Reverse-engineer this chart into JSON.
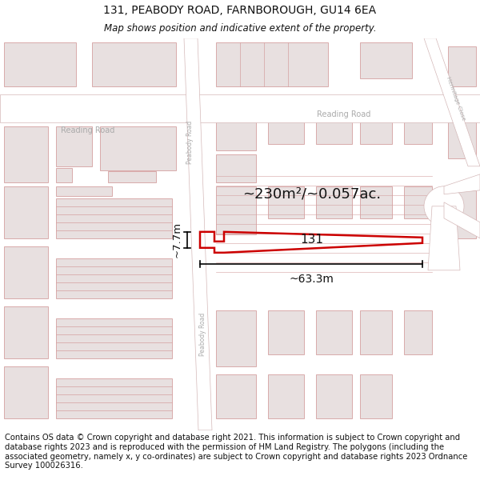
{
  "title_line1": "131, PEABODY ROAD, FARNBOROUGH, GU14 6EA",
  "title_line2": "Map shows position and indicative extent of the property.",
  "footer_text": "Contains OS data © Crown copyright and database right 2021. This information is subject to Crown copyright and database rights 2023 and is reproduced with the permission of HM Land Registry. The polygons (including the associated geometry, namely x, y co-ordinates) are subject to Crown copyright and database rights 2023 Ordnance Survey 100026316.",
  "area_label": "~230m²/~0.057ac.",
  "width_label": "~63.3m",
  "height_label": "~7.7m",
  "property_number": "131",
  "map_bg": "#f7f5f5",
  "road_color": "#ffffff",
  "road_line_color": "#d4b8b8",
  "building_fill": "#e8e0e0",
  "building_edge": "#d4a0a0",
  "plot_edge": "#cc0000",
  "dim_line_color": "#000000",
  "road_label_color": "#aaaaaa",
  "title_fontsize": 10,
  "subtitle_fontsize": 9,
  "footer_fontsize": 7.2
}
